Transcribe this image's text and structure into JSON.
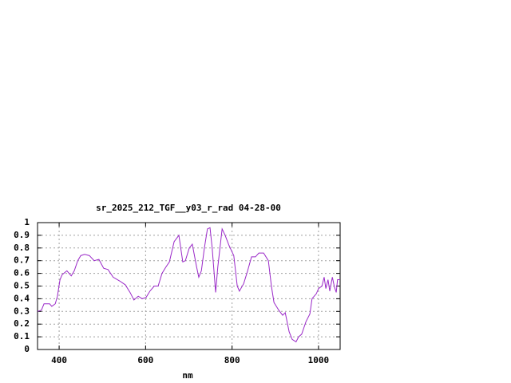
{
  "chart_data": {
    "type": "line",
    "title": "sr_2025_212_TGF__y03_r_rad 04-28-00",
    "x_label": "nm",
    "x": [
      350,
      359,
      365,
      378,
      383,
      391,
      396,
      402,
      407,
      418,
      428,
      435,
      443,
      450,
      459,
      470,
      481,
      492,
      503,
      513,
      525,
      540,
      553,
      564,
      573,
      583,
      592,
      601,
      610,
      620,
      629,
      638,
      647,
      655,
      666,
      677,
      686,
      692,
      701,
      708,
      718,
      723,
      729,
      736,
      743,
      749,
      754,
      762,
      767,
      777,
      784,
      793,
      804,
      812,
      817,
      827,
      836,
      845,
      854,
      862,
      873,
      884,
      891,
      897,
      908,
      917,
      923,
      932,
      939,
      948,
      954,
      961,
      971,
      980,
      985,
      995,
      1000,
      1008,
      1013,
      1017,
      1022,
      1026,
      1032,
      1037,
      1041,
      1044,
      1050
    ],
    "series": [
      {
        "color": "#9a28c8",
        "values": [
          0.3,
          0.31,
          0.36,
          0.36,
          0.34,
          0.36,
          0.42,
          0.55,
          0.59,
          0.62,
          0.58,
          0.62,
          0.7,
          0.74,
          0.75,
          0.74,
          0.7,
          0.71,
          0.64,
          0.63,
          0.57,
          0.54,
          0.51,
          0.45,
          0.39,
          0.42,
          0.4,
          0.41,
          0.46,
          0.5,
          0.5,
          0.6,
          0.65,
          0.69,
          0.85,
          0.9,
          0.69,
          0.7,
          0.8,
          0.83,
          0.65,
          0.57,
          0.62,
          0.8,
          0.95,
          0.96,
          0.8,
          0.45,
          0.65,
          0.95,
          0.9,
          0.82,
          0.74,
          0.5,
          0.46,
          0.52,
          0.62,
          0.73,
          0.73,
          0.76,
          0.76,
          0.7,
          0.5,
          0.37,
          0.31,
          0.27,
          0.29,
          0.14,
          0.08,
          0.06,
          0.1,
          0.12,
          0.22,
          0.28,
          0.4,
          0.44,
          0.48,
          0.5,
          0.57,
          0.48,
          0.55,
          0.46,
          0.57,
          0.49,
          0.45,
          0.55,
          0.55
        ]
      }
    ],
    "xlim": [
      350,
      1050
    ],
    "xticks": [
      400,
      600,
      800,
      1000
    ],
    "ylim": [
      0,
      1
    ],
    "yticks": [
      0,
      0.1,
      0.2,
      0.3,
      0.4,
      0.5,
      0.6,
      0.7,
      0.8,
      0.9,
      1
    ],
    "grid": true
  }
}
